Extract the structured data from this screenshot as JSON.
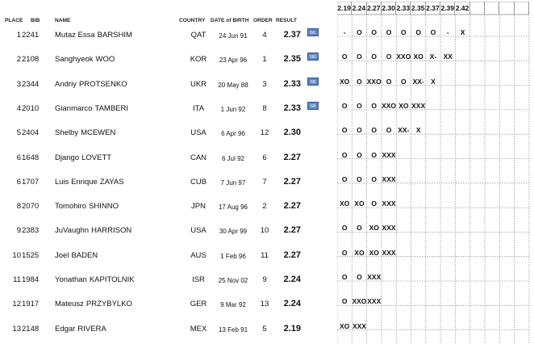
{
  "headers": {
    "place": "PLACE",
    "bib": "BIB",
    "name": "NAME",
    "country": "COUNTRY",
    "dob": "DATE of BIRTH",
    "order": "ORDER",
    "result": "RESULT"
  },
  "heights": [
    "2.19",
    "2.24",
    "2.27",
    "2.30",
    "2.33",
    "2.35",
    "2.37",
    "2.39",
    "2.42"
  ],
  "athletes": [
    {
      "place": "1",
      "bib": "2241",
      "first": "Mutaz Essa",
      "last": "BARSHIM",
      "country": "QAT",
      "dob": "24 Jun 91",
      "order": "4",
      "result": "2.37",
      "badge": "WL",
      "attempts": [
        "-",
        "O",
        "O",
        "O",
        "O",
        "O",
        "O",
        "-",
        "X"
      ]
    },
    {
      "place": "2",
      "bib": "2108",
      "first": "Sanghyeok",
      "last": "WOO",
      "country": "KOR",
      "dob": "23 Apr 96",
      "order": "1",
      "result": "2.35",
      "badge": "NR",
      "attempts": [
        "O",
        "O",
        "O",
        "O",
        "XXO",
        "XO",
        "X-",
        "XX",
        ""
      ]
    },
    {
      "place": "3",
      "bib": "2344",
      "first": "Andriy",
      "last": "PROTSENKO",
      "country": "UKR",
      "dob": "20 May 88",
      "order": "3",
      "result": "2.33",
      "badge": "SB",
      "attempts": [
        "XO",
        "O",
        "XXO",
        "O",
        "O",
        "XX-",
        "X",
        "",
        ""
      ]
    },
    {
      "place": "4",
      "bib": "2010",
      "first": "Gianmarco",
      "last": "TAMBERI",
      "country": "ITA",
      "dob": "1 Jun 92",
      "order": "8",
      "result": "2.33",
      "badge": "SB",
      "attempts": [
        "O",
        "O",
        "O",
        "XXO",
        "XO",
        "XXX",
        "",
        "",
        ""
      ]
    },
    {
      "place": "5",
      "bib": "2404",
      "first": "Shelby",
      "last": "MCEWEN",
      "country": "USA",
      "dob": "6 Apr 96",
      "order": "12",
      "result": "2.30",
      "badge": "",
      "attempts": [
        "O",
        "O",
        "O",
        "O",
        "XX-",
        "X",
        "",
        "",
        ""
      ]
    },
    {
      "place": "6",
      "bib": "1648",
      "first": "Django",
      "last": "LOVETT",
      "country": "CAN",
      "dob": "6 Jul 92",
      "order": "6",
      "result": "2.27",
      "badge": "",
      "attempts": [
        "O",
        "O",
        "O",
        "XXX",
        "",
        "",
        "",
        "",
        ""
      ]
    },
    {
      "place": "6",
      "bib": "1707",
      "first": "Luis Enrique",
      "last": "ZAYAS",
      "country": "CUB",
      "dob": "7 Jun 97",
      "order": "7",
      "result": "2.27",
      "badge": "",
      "attempts": [
        "O",
        "O",
        "O",
        "XXX",
        "",
        "",
        "",
        "",
        ""
      ]
    },
    {
      "place": "8",
      "bib": "2070",
      "first": "Tomohiro",
      "last": "SHINNO",
      "country": "JPN",
      "dob": "17 Aug 96",
      "order": "2",
      "result": "2.27",
      "badge": "",
      "attempts": [
        "XO",
        "XO",
        "O",
        "XXX",
        "",
        "",
        "",
        "",
        ""
      ]
    },
    {
      "place": "9",
      "bib": "2383",
      "first": "JuVaughn",
      "last": "HARRISON",
      "country": "USA",
      "dob": "30 Apr 99",
      "order": "10",
      "result": "2.27",
      "badge": "",
      "attempts": [
        "O",
        "O",
        "XO",
        "XXX",
        "",
        "",
        "",
        "",
        ""
      ]
    },
    {
      "place": "10",
      "bib": "1525",
      "first": "Joel",
      "last": "BADEN",
      "country": "AUS",
      "dob": "1 Feb 96",
      "order": "11",
      "result": "2.27",
      "badge": "",
      "attempts": [
        "O",
        "XO",
        "XO",
        "XXX",
        "",
        "",
        "",
        "",
        ""
      ]
    },
    {
      "place": "11",
      "bib": "1984",
      "first": "Yonathan",
      "last": "KAPITOLNIK",
      "country": "ISR",
      "dob": "25 Nov 02",
      "order": "9",
      "result": "2.24",
      "badge": "",
      "attempts": [
        "O",
        "O",
        "XXX",
        "",
        "",
        "",
        "",
        "",
        ""
      ]
    },
    {
      "place": "12",
      "bib": "1917",
      "first": "Mateusz",
      "last": "PRZYBYLKO",
      "country": "GER",
      "dob": "9 Mar 92",
      "order": "13",
      "result": "2.24",
      "badge": "",
      "attempts": [
        "O",
        "XXO",
        "XXX",
        "",
        "",
        "",
        "",
        "",
        ""
      ]
    },
    {
      "place": "13",
      "bib": "2148",
      "first": "Edgar",
      "last": "RIVERA",
      "country": "MEX",
      "dob": "13 Feb 91",
      "order": "5",
      "result": "2.19",
      "badge": "",
      "attempts": [
        "XO",
        "XXX",
        "",
        "",
        "",
        "",
        "",
        "",
        ""
      ]
    }
  ]
}
